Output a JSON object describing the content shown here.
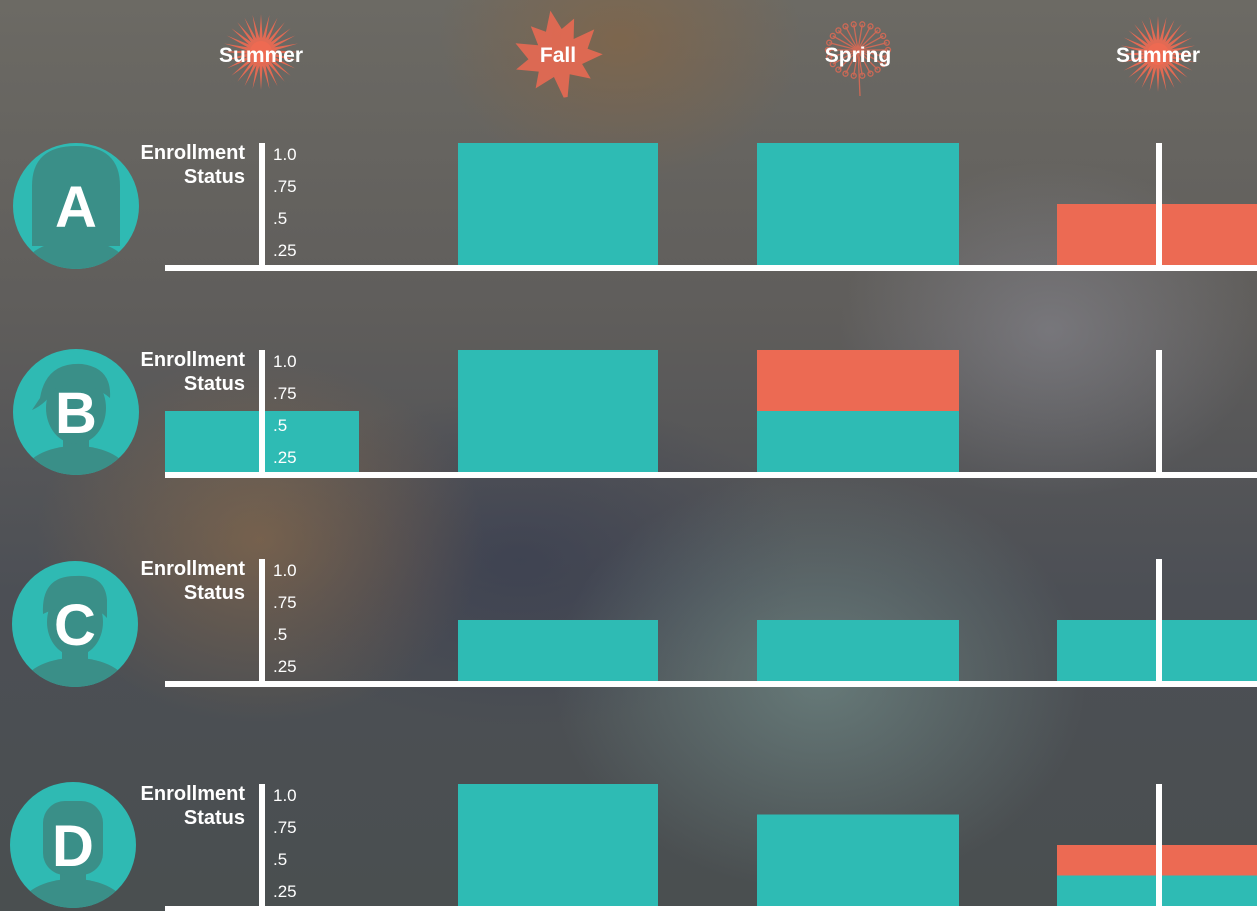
{
  "chart_data": {
    "type": "bar",
    "seasons": [
      "Summer",
      "Fall",
      "Spring",
      "Summer"
    ],
    "season_icons": [
      "sun-icon",
      "maple-leaf-icon",
      "dandelion-icon",
      "sun-icon"
    ],
    "axis_label": [
      "Enrollment",
      "Status"
    ],
    "ticks": [
      "1.0",
      ".75",
      ".5",
      ".25"
    ],
    "ylim": [
      0,
      1
    ],
    "series_colors": {
      "enrolled": "#2ebbb4",
      "not_enrolled": "#ec6a53"
    },
    "students": [
      {
        "letter": "A",
        "bars": [
          {
            "season": "Summer",
            "enrolled": 0,
            "not_enrolled": 0
          },
          {
            "season": "Fall",
            "enrolled": 1.0,
            "not_enrolled": 0
          },
          {
            "season": "Spring",
            "enrolled": 1.0,
            "not_enrolled": 0
          },
          {
            "season": "Summer",
            "enrolled": 0,
            "not_enrolled": 0.5
          }
        ]
      },
      {
        "letter": "B",
        "bars": [
          {
            "season": "Summer",
            "enrolled": 0.5,
            "not_enrolled": 0
          },
          {
            "season": "Fall",
            "enrolled": 1.0,
            "not_enrolled": 0
          },
          {
            "season": "Spring",
            "enrolled": 0.5,
            "not_enrolled": 0.5
          },
          {
            "season": "Summer",
            "enrolled": 0,
            "not_enrolled": 0
          }
        ]
      },
      {
        "letter": "C",
        "bars": [
          {
            "season": "Summer",
            "enrolled": 0,
            "not_enrolled": 0
          },
          {
            "season": "Fall",
            "enrolled": 0.5,
            "not_enrolled": 0
          },
          {
            "season": "Spring",
            "enrolled": 0.5,
            "not_enrolled": 0
          },
          {
            "season": "Summer",
            "enrolled": 0.5,
            "not_enrolled": 0
          }
        ]
      },
      {
        "letter": "D",
        "bars": [
          {
            "season": "Summer",
            "enrolled": 0,
            "not_enrolled": 0
          },
          {
            "season": "Fall",
            "enrolled": 1.0,
            "not_enrolled": 0
          },
          {
            "season": "Spring",
            "enrolled": 0.75,
            "not_enrolled": 0
          },
          {
            "season": "Summer",
            "enrolled": 0.25,
            "not_enrolled": 0.25
          }
        ]
      }
    ],
    "colors": {
      "avatar_bg": "#2fbab3",
      "avatar_figure": "#3a8f88",
      "season_icon": "#ee6a52",
      "axis": "#ffffff"
    }
  }
}
